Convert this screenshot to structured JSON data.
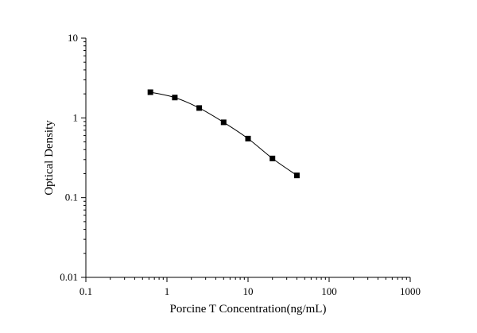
{
  "chart_data": {
    "type": "scatter",
    "title": "",
    "xlabel": "Porcine T Concentration(ng/mL)",
    "ylabel": "Optical Density",
    "xscale": "log",
    "yscale": "log",
    "xlim": [
      0.1,
      1000
    ],
    "ylim": [
      0.01,
      10
    ],
    "x_ticks": [
      "0.1",
      "1",
      "10",
      "100",
      "1000"
    ],
    "y_ticks": [
      "0.01",
      "0.1",
      "1",
      "10"
    ],
    "grid": false,
    "legend": "none",
    "marker": "square",
    "fit_curve": true,
    "series": [
      {
        "x": [
          0.625,
          1.25,
          2.5,
          5,
          10,
          20,
          40
        ],
        "y": [
          2.1,
          1.8,
          1.33,
          0.88,
          0.55,
          0.31,
          0.19
        ]
      }
    ]
  }
}
